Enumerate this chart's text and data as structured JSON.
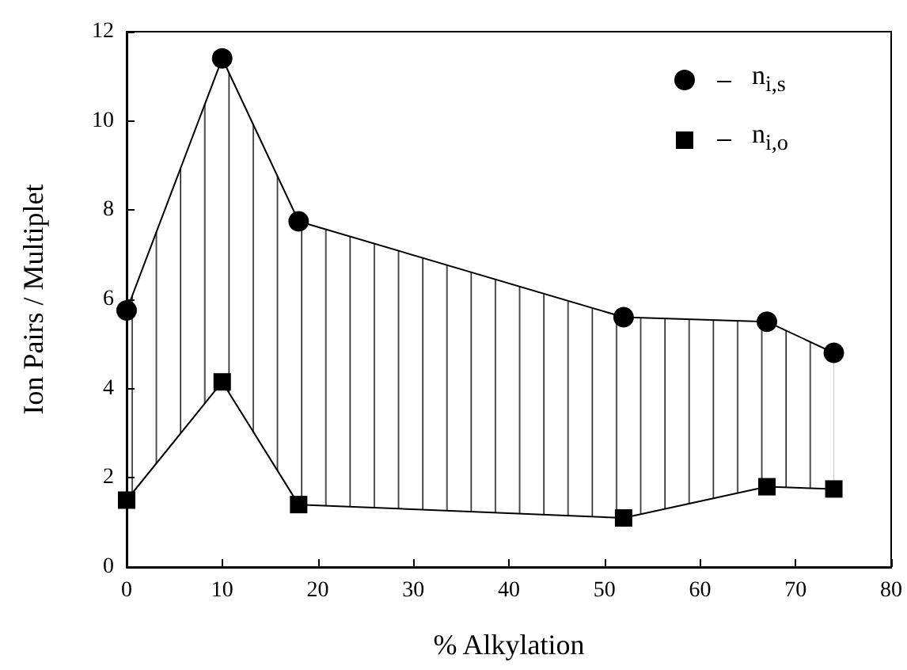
{
  "chart_data": {
    "type": "line",
    "xlabel": "% Alkylation",
    "ylabel": "Ion Pairs / Multiplet",
    "x": [
      0,
      10,
      18,
      52,
      67,
      74
    ],
    "series": [
      {
        "name": "n$_{i,s}$",
        "color": "#000000",
        "marker": "circle",
        "values": [
          5.75,
          11.4,
          7.75,
          5.6,
          5.5,
          4.8
        ],
        "lower": [
          1.5,
          4.15,
          1.4,
          1.1,
          1.8,
          1.75
        ],
        "upper": [
          5.75,
          11.4,
          7.75,
          5.6,
          5.5,
          4.8
        ]
      },
      {
        "name": "n$_{i,o}$",
        "color": "#000000",
        "marker": "square",
        "values": [
          1.5,
          4.15,
          1.4,
          1.1,
          1.8,
          1.75
        ]
      }
    ],
    "xlim": [
      0,
      80
    ],
    "xticks": [
      0,
      10,
      20,
      30,
      40,
      50,
      60,
      70,
      80
    ],
    "ylim": [
      0,
      12
    ],
    "yticks": [
      0,
      2,
      4,
      6,
      8,
      10,
      12
    ],
    "grid": false,
    "legend": "top right",
    "line_style": "solid"
  }
}
